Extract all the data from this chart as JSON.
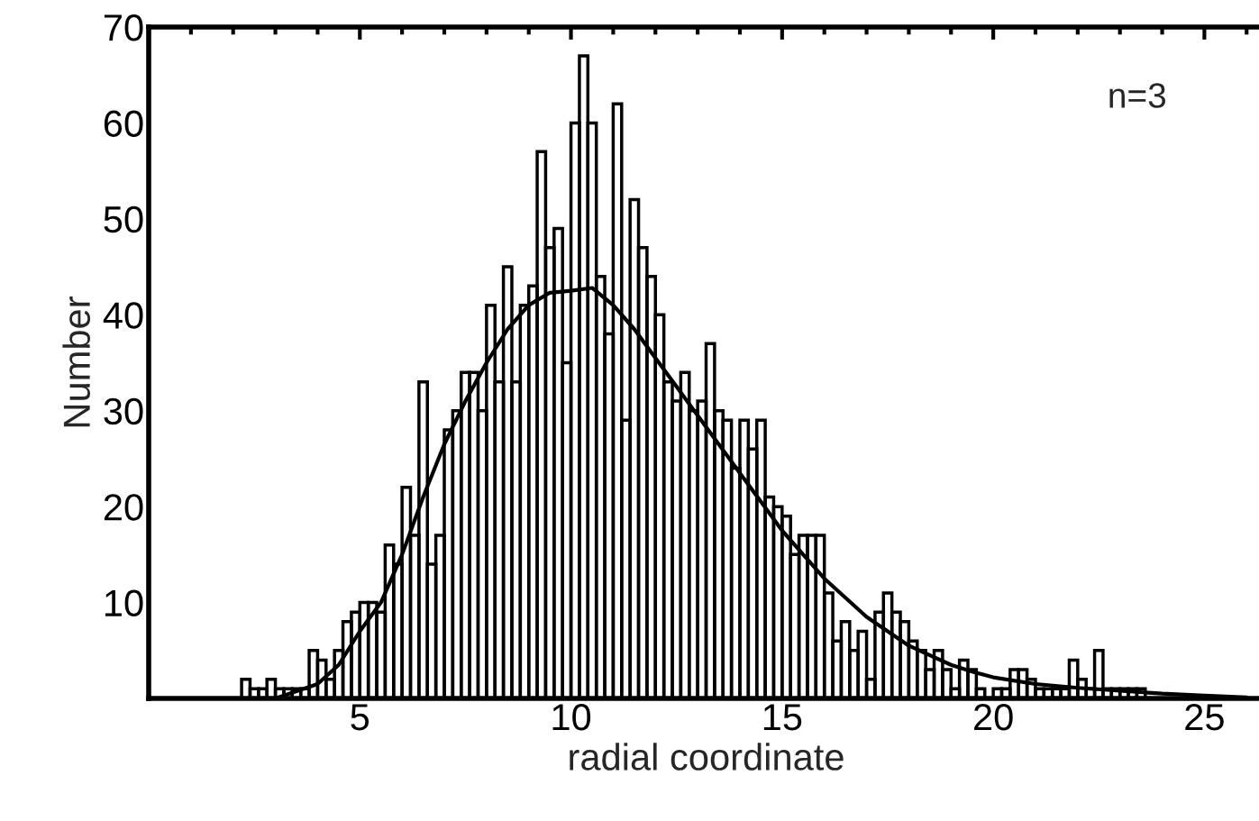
{
  "chart_data": {
    "type": "histogram",
    "xlabel": "radial coordinate",
    "ylabel": "Number",
    "color": "#000000",
    "bins": [
      2.2,
      2.4,
      2.6,
      2.8,
      3.0,
      3.2,
      3.4,
      3.6,
      3.8,
      4.0,
      4.2,
      4.4,
      4.6,
      4.8,
      5.0,
      5.2,
      5.4,
      5.6,
      5.8,
      6.0,
      6.2,
      6.4,
      6.6,
      6.8,
      7.0,
      7.2,
      7.4,
      7.6,
      7.8,
      8.0,
      8.2,
      8.4,
      8.6,
      8.8,
      9.0,
      9.2,
      9.4,
      9.6,
      9.8,
      10.0,
      10.2,
      10.4,
      10.6,
      10.8,
      11.0,
      11.2,
      11.4,
      11.6,
      11.8,
      12.0,
      12.2,
      12.4,
      12.6,
      12.8,
      13.0,
      13.2,
      13.4,
      13.6,
      13.8,
      14.0,
      14.2,
      14.4,
      14.6,
      14.8,
      15.0,
      15.2,
      15.4,
      15.6,
      15.8,
      16.0,
      16.2,
      16.4,
      16.6,
      16.8,
      17.0,
      17.2,
      17.4,
      17.6,
      17.8,
      18.0,
      18.2,
      18.4,
      18.6,
      18.8,
      19.0,
      19.2,
      19.4,
      19.6,
      19.8,
      20.0,
      20.2,
      20.4,
      20.6,
      20.8,
      21.0,
      21.2,
      21.4,
      21.6,
      21.8,
      22.0,
      22.2,
      22.4,
      22.6,
      22.8,
      23.0,
      23.2,
      23.4,
      23.6
    ],
    "values": [
      2,
      1,
      1,
      2,
      1,
      1,
      1,
      1,
      5,
      4,
      2,
      5,
      8,
      9,
      10,
      10,
      9,
      16,
      14,
      22,
      17,
      33,
      14,
      17,
      28,
      30,
      34,
      34,
      30,
      41,
      33,
      45,
      33,
      41,
      43,
      57,
      47,
      49,
      35,
      60,
      67,
      60,
      44,
      38,
      62,
      29,
      52,
      47,
      44,
      40,
      33,
      31,
      34,
      30,
      31,
      37,
      30,
      29,
      24,
      29,
      26,
      29,
      21,
      20,
      19,
      15,
      17,
      17,
      17,
      11,
      6,
      8,
      5,
      7,
      2,
      9,
      11,
      9,
      8,
      6,
      5,
      3,
      5,
      3,
      1,
      4,
      3,
      1,
      0,
      1,
      1,
      3,
      3,
      2,
      1,
      1,
      1,
      1,
      4,
      2,
      1,
      5,
      1,
      1,
      1,
      1,
      1
    ],
    "series": [
      {
        "type": "line",
        "color": "#000000",
        "x": [
          3,
          4,
          4.5,
          5,
          5.5,
          6,
          6.5,
          7,
          7.5,
          8,
          8.5,
          9,
          9.5,
          10,
          10.5,
          11,
          11.5,
          12,
          12.5,
          13,
          13.5,
          14,
          14.5,
          15,
          15.5,
          16,
          16.5,
          17,
          17.5,
          18,
          18.5,
          19,
          19.5,
          20,
          21,
          22,
          23,
          24,
          25,
          26
        ],
        "values": [
          0,
          1.5,
          3.5,
          7,
          10,
          15,
          21,
          26.5,
          31,
          35,
          38.5,
          41,
          42.3,
          42.5,
          42.8,
          41,
          38.5,
          35.5,
          32.5,
          29.5,
          26.5,
          23.5,
          20.5,
          17.5,
          15,
          12.5,
          10.5,
          8.5,
          7,
          5.5,
          4.5,
          3.5,
          2.8,
          2.2,
          1.5,
          1.1,
          0.8,
          0.5,
          0.3,
          0.1
        ]
      }
    ],
    "xlim": [
      0,
      26.4
    ],
    "ylim": [
      0,
      70
    ],
    "xticks": [
      5,
      10,
      15,
      20,
      25
    ],
    "yticks": [
      10,
      20,
      30,
      40,
      50,
      60,
      70
    ],
    "grid": false,
    "legend": false,
    "annotations": [
      "n=3"
    ]
  }
}
